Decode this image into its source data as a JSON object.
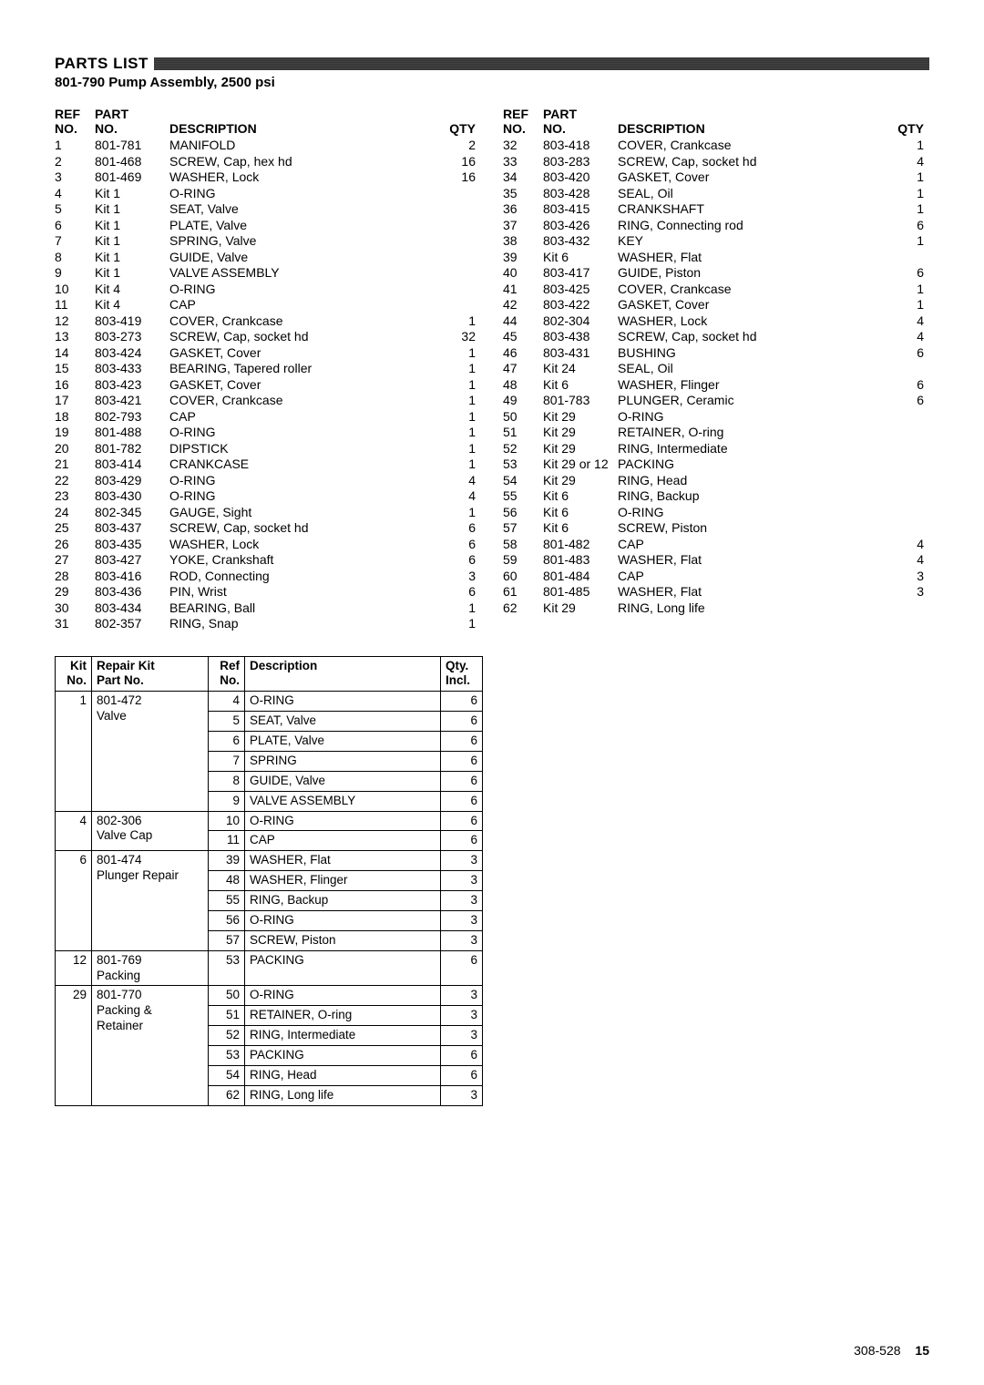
{
  "header": {
    "title": "PARTS LIST",
    "subtitle": "801-790 Pump Assembly, 2500 psi"
  },
  "columns": {
    "ref": "REF\nNO.",
    "part": "PART\nNO.",
    "desc": "DESCRIPTION",
    "qty": "QTY"
  },
  "parts_left": [
    {
      "ref": "1",
      "part": "801-781",
      "desc": "MANIFOLD",
      "qty": "2"
    },
    {
      "ref": "2",
      "part": "801-468",
      "desc": "SCREW, Cap, hex hd",
      "qty": "16"
    },
    {
      "ref": "3",
      "part": "801-469",
      "desc": "WASHER, Lock",
      "qty": "16"
    },
    {
      "ref": "4",
      "part": "Kit 1",
      "desc": "O-RING",
      "qty": ""
    },
    {
      "ref": "5",
      "part": "Kit 1",
      "desc": "SEAT, Valve",
      "qty": ""
    },
    {
      "ref": "6",
      "part": "Kit 1",
      "desc": "PLATE, Valve",
      "qty": ""
    },
    {
      "ref": "7",
      "part": "Kit 1",
      "desc": "SPRING, Valve",
      "qty": ""
    },
    {
      "ref": "8",
      "part": "Kit 1",
      "desc": "GUIDE, Valve",
      "qty": ""
    },
    {
      "ref": "9",
      "part": "Kit 1",
      "desc": "VALVE ASSEMBLY",
      "qty": ""
    },
    {
      "ref": "10",
      "part": "Kit 4",
      "desc": "O-RING",
      "qty": ""
    },
    {
      "ref": "11",
      "part": "Kit 4",
      "desc": "CAP",
      "qty": ""
    },
    {
      "ref": "12",
      "part": "803-419",
      "desc": "COVER, Crankcase",
      "qty": "1"
    },
    {
      "ref": "13",
      "part": "803-273",
      "desc": "SCREW, Cap, socket hd",
      "qty": "32"
    },
    {
      "ref": "14",
      "part": "803-424",
      "desc": "GASKET, Cover",
      "qty": "1"
    },
    {
      "ref": "15",
      "part": "803-433",
      "desc": "BEARING, Tapered roller",
      "qty": "1"
    },
    {
      "ref": "16",
      "part": "803-423",
      "desc": "GASKET, Cover",
      "qty": "1"
    },
    {
      "ref": "17",
      "part": "803-421",
      "desc": "COVER, Crankcase",
      "qty": "1"
    },
    {
      "ref": "18",
      "part": "802-793",
      "desc": "CAP",
      "qty": "1"
    },
    {
      "ref": "19",
      "part": "801-488",
      "desc": "O-RING",
      "qty": "1"
    },
    {
      "ref": "20",
      "part": "801-782",
      "desc": "DIPSTICK",
      "qty": "1"
    },
    {
      "ref": "21",
      "part": "803-414",
      "desc": "CRANKCASE",
      "qty": "1"
    },
    {
      "ref": "22",
      "part": "803-429",
      "desc": "O-RING",
      "qty": "4"
    },
    {
      "ref": "23",
      "part": "803-430",
      "desc": "O-RING",
      "qty": "4"
    },
    {
      "ref": "24",
      "part": "802-345",
      "desc": "GAUGE, Sight",
      "qty": "1"
    },
    {
      "ref": "25",
      "part": "803-437",
      "desc": "SCREW, Cap, socket hd",
      "qty": "6"
    },
    {
      "ref": "26",
      "part": "803-435",
      "desc": "WASHER, Lock",
      "qty": "6"
    },
    {
      "ref": "27",
      "part": "803-427",
      "desc": "YOKE, Crankshaft",
      "qty": "6"
    },
    {
      "ref": "28",
      "part": "803-416",
      "desc": "ROD, Connecting",
      "qty": "3"
    },
    {
      "ref": "29",
      "part": "803-436",
      "desc": "PIN, Wrist",
      "qty": "6"
    },
    {
      "ref": "30",
      "part": "803-434",
      "desc": "BEARING, Ball",
      "qty": "1"
    },
    {
      "ref": "31",
      "part": "802-357",
      "desc": "RING, Snap",
      "qty": "1"
    }
  ],
  "parts_right": [
    {
      "ref": "32",
      "part": "803-418",
      "desc": "COVER, Crankcase",
      "qty": "1"
    },
    {
      "ref": "33",
      "part": "803-283",
      "desc": "SCREW, Cap, socket hd",
      "qty": "4"
    },
    {
      "ref": "34",
      "part": "803-420",
      "desc": "GASKET, Cover",
      "qty": "1"
    },
    {
      "ref": "35",
      "part": "803-428",
      "desc": "SEAL, Oil",
      "qty": "1"
    },
    {
      "ref": "36",
      "part": "803-415",
      "desc": "CRANKSHAFT",
      "qty": "1"
    },
    {
      "ref": "37",
      "part": "803-426",
      "desc": "RING, Connecting rod",
      "qty": "6"
    },
    {
      "ref": "38",
      "part": "803-432",
      "desc": "KEY",
      "qty": "1"
    },
    {
      "ref": "39",
      "part": "Kit 6",
      "desc": "WASHER, Flat",
      "qty": ""
    },
    {
      "ref": "40",
      "part": "803-417",
      "desc": "GUIDE, Piston",
      "qty": "6"
    },
    {
      "ref": "41",
      "part": "803-425",
      "desc": "COVER, Crankcase",
      "qty": "1"
    },
    {
      "ref": "42",
      "part": "803-422",
      "desc": "GASKET, Cover",
      "qty": "1"
    },
    {
      "ref": "44",
      "part": "802-304",
      "desc": "WASHER, Lock",
      "qty": "4"
    },
    {
      "ref": "45",
      "part": "803-438",
      "desc": "SCREW, Cap, socket hd",
      "qty": "4"
    },
    {
      "ref": "46",
      "part": "803-431",
      "desc": "BUSHING",
      "qty": "6"
    },
    {
      "ref": "47",
      "part": "Kit 24",
      "desc": "SEAL, Oil",
      "qty": ""
    },
    {
      "ref": "48",
      "part": "Kit 6",
      "desc": "WASHER, Flinger",
      "qty": "6"
    },
    {
      "ref": "49",
      "part": "801-783",
      "desc": "PLUNGER, Ceramic",
      "qty": "6"
    },
    {
      "ref": "50",
      "part": "Kit 29",
      "desc": "O-RING",
      "qty": ""
    },
    {
      "ref": "51",
      "part": "Kit 29",
      "desc": "RETAINER, O-ring",
      "qty": ""
    },
    {
      "ref": "52",
      "part": "Kit 29",
      "desc": "RING, Intermediate",
      "qty": ""
    },
    {
      "ref": "53",
      "part": "Kit 29 or 12",
      "desc": "PACKING",
      "qty": ""
    },
    {
      "ref": "54",
      "part": "Kit 29",
      "desc": "RING, Head",
      "qty": ""
    },
    {
      "ref": "55",
      "part": "Kit 6",
      "desc": "RING, Backup",
      "qty": ""
    },
    {
      "ref": "56",
      "part": "Kit 6",
      "desc": "O-RING",
      "qty": ""
    },
    {
      "ref": "57",
      "part": "Kit 6",
      "desc": "SCREW, Piston",
      "qty": ""
    },
    {
      "ref": "58",
      "part": "801-482",
      "desc": "CAP",
      "qty": "4"
    },
    {
      "ref": "59",
      "part": "801-483",
      "desc": "WASHER, Flat",
      "qty": "4"
    },
    {
      "ref": "60",
      "part": "801-484",
      "desc": "CAP",
      "qty": "3"
    },
    {
      "ref": "61",
      "part": "801-485",
      "desc": "WASHER, Flat",
      "qty": "3"
    },
    {
      "ref": "62",
      "part": "Kit 29",
      "desc": "RING, Long life",
      "qty": ""
    }
  ],
  "kit_headers": {
    "kitno": "Kit\nNo.",
    "part": "Repair Kit\nPart No.",
    "refno": "Ref\nNo.",
    "desc": "Description",
    "qty": "Qty.\nIncl."
  },
  "kits": [
    {
      "kitno": "1",
      "part": "801-472\nValve",
      "rows": [
        {
          "ref": "4",
          "desc": "O-RING",
          "qty": "6"
        },
        {
          "ref": "5",
          "desc": "SEAT, Valve",
          "qty": "6"
        },
        {
          "ref": "6",
          "desc": "PLATE, Valve",
          "qty": "6"
        },
        {
          "ref": "7",
          "desc": "SPRING",
          "qty": "6"
        },
        {
          "ref": "8",
          "desc": "GUIDE, Valve",
          "qty": "6"
        },
        {
          "ref": "9",
          "desc": "VALVE ASSEMBLY",
          "qty": "6"
        }
      ]
    },
    {
      "kitno": "4",
      "part": "802-306\nValve Cap",
      "rows": [
        {
          "ref": "10",
          "desc": "O-RING",
          "qty": "6"
        },
        {
          "ref": "11",
          "desc": "CAP",
          "qty": "6"
        }
      ]
    },
    {
      "kitno": "6",
      "part": "801-474\nPlunger Repair",
      "rows": [
        {
          "ref": "39",
          "desc": "WASHER, Flat",
          "qty": "3"
        },
        {
          "ref": "48",
          "desc": "WASHER, Flinger",
          "qty": "3"
        },
        {
          "ref": "55",
          "desc": "RING, Backup",
          "qty": "3"
        },
        {
          "ref": "56",
          "desc": "O-RING",
          "qty": "3"
        },
        {
          "ref": "57",
          "desc": "SCREW, Piston",
          "qty": "3"
        }
      ]
    },
    {
      "kitno": "12",
      "part": "801-769\nPacking",
      "rows": [
        {
          "ref": "53",
          "desc": "PACKING",
          "qty": "6"
        }
      ]
    },
    {
      "kitno": "29",
      "part": "801-770\nPacking &\nRetainer",
      "rows": [
        {
          "ref": "50",
          "desc": "O-RING",
          "qty": "3"
        },
        {
          "ref": "51",
          "desc": "RETAINER, O-ring",
          "qty": "3"
        },
        {
          "ref": "52",
          "desc": "RING, Intermediate",
          "qty": "3"
        },
        {
          "ref": "53",
          "desc": "PACKING",
          "qty": "6"
        },
        {
          "ref": "54",
          "desc": "RING, Head",
          "qty": "6"
        },
        {
          "ref": "62",
          "desc": "RING, Long life",
          "qty": "3"
        }
      ]
    }
  ],
  "footer": {
    "doc": "308-528",
    "page": "15"
  }
}
